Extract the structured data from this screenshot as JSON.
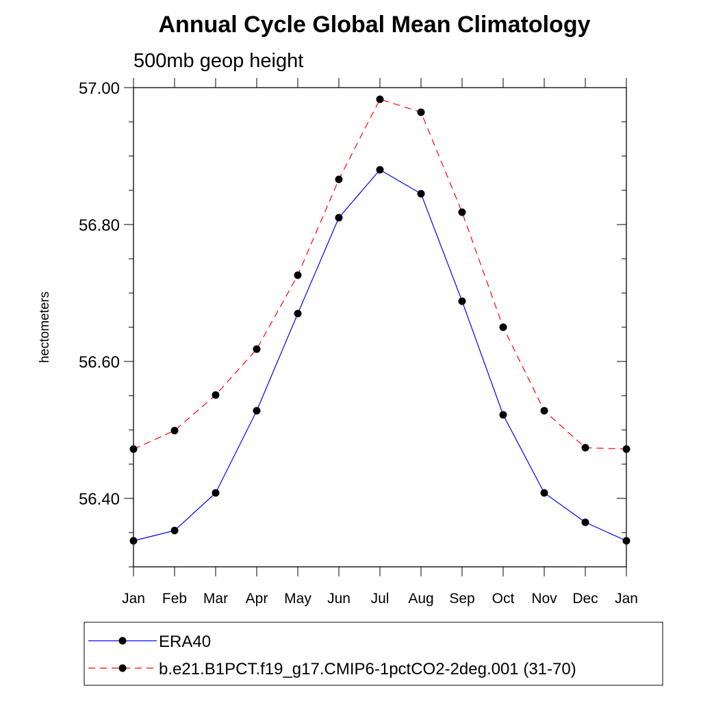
{
  "chart_data": {
    "type": "line",
    "title": "Annual Cycle Global Mean Climatology",
    "subtitle": "500mb geop height",
    "xlabel": "",
    "ylabel": "hectometers",
    "categories": [
      "Jan",
      "Feb",
      "Mar",
      "Apr",
      "May",
      "Jun",
      "Jul",
      "Aug",
      "Sep",
      "Oct",
      "Nov",
      "Dec",
      "Jan"
    ],
    "ylim": [
      56.3,
      57.0
    ],
    "yticks_major": [
      56.4,
      56.6,
      56.8,
      57.0
    ],
    "ytick_labels": [
      "56.40",
      "56.60",
      "56.80",
      "57.00"
    ],
    "yticks_minor_step": 0.05,
    "legend_position": "bottom",
    "series": [
      {
        "name": "ERA40",
        "color": "#0000ff",
        "dash": "solid",
        "marker": "filled-circle",
        "values": [
          56.338,
          56.353,
          56.408,
          56.528,
          56.67,
          56.81,
          56.88,
          56.845,
          56.688,
          56.522,
          56.408,
          56.365,
          56.338
        ]
      },
      {
        "name": "b.e21.B1PCT.f19_g17.CMIP6-1pctCO2-2deg.001 (31-70)",
        "color": "#ff0000",
        "dash": "dashed",
        "marker": "filled-circle",
        "values": [
          56.472,
          56.499,
          56.551,
          56.618,
          56.726,
          56.866,
          56.983,
          56.964,
          56.818,
          56.65,
          56.528,
          56.474,
          56.472
        ]
      }
    ]
  },
  "colors": {
    "background": "#ffffff",
    "axis": "#000000",
    "marker": "#000000"
  }
}
